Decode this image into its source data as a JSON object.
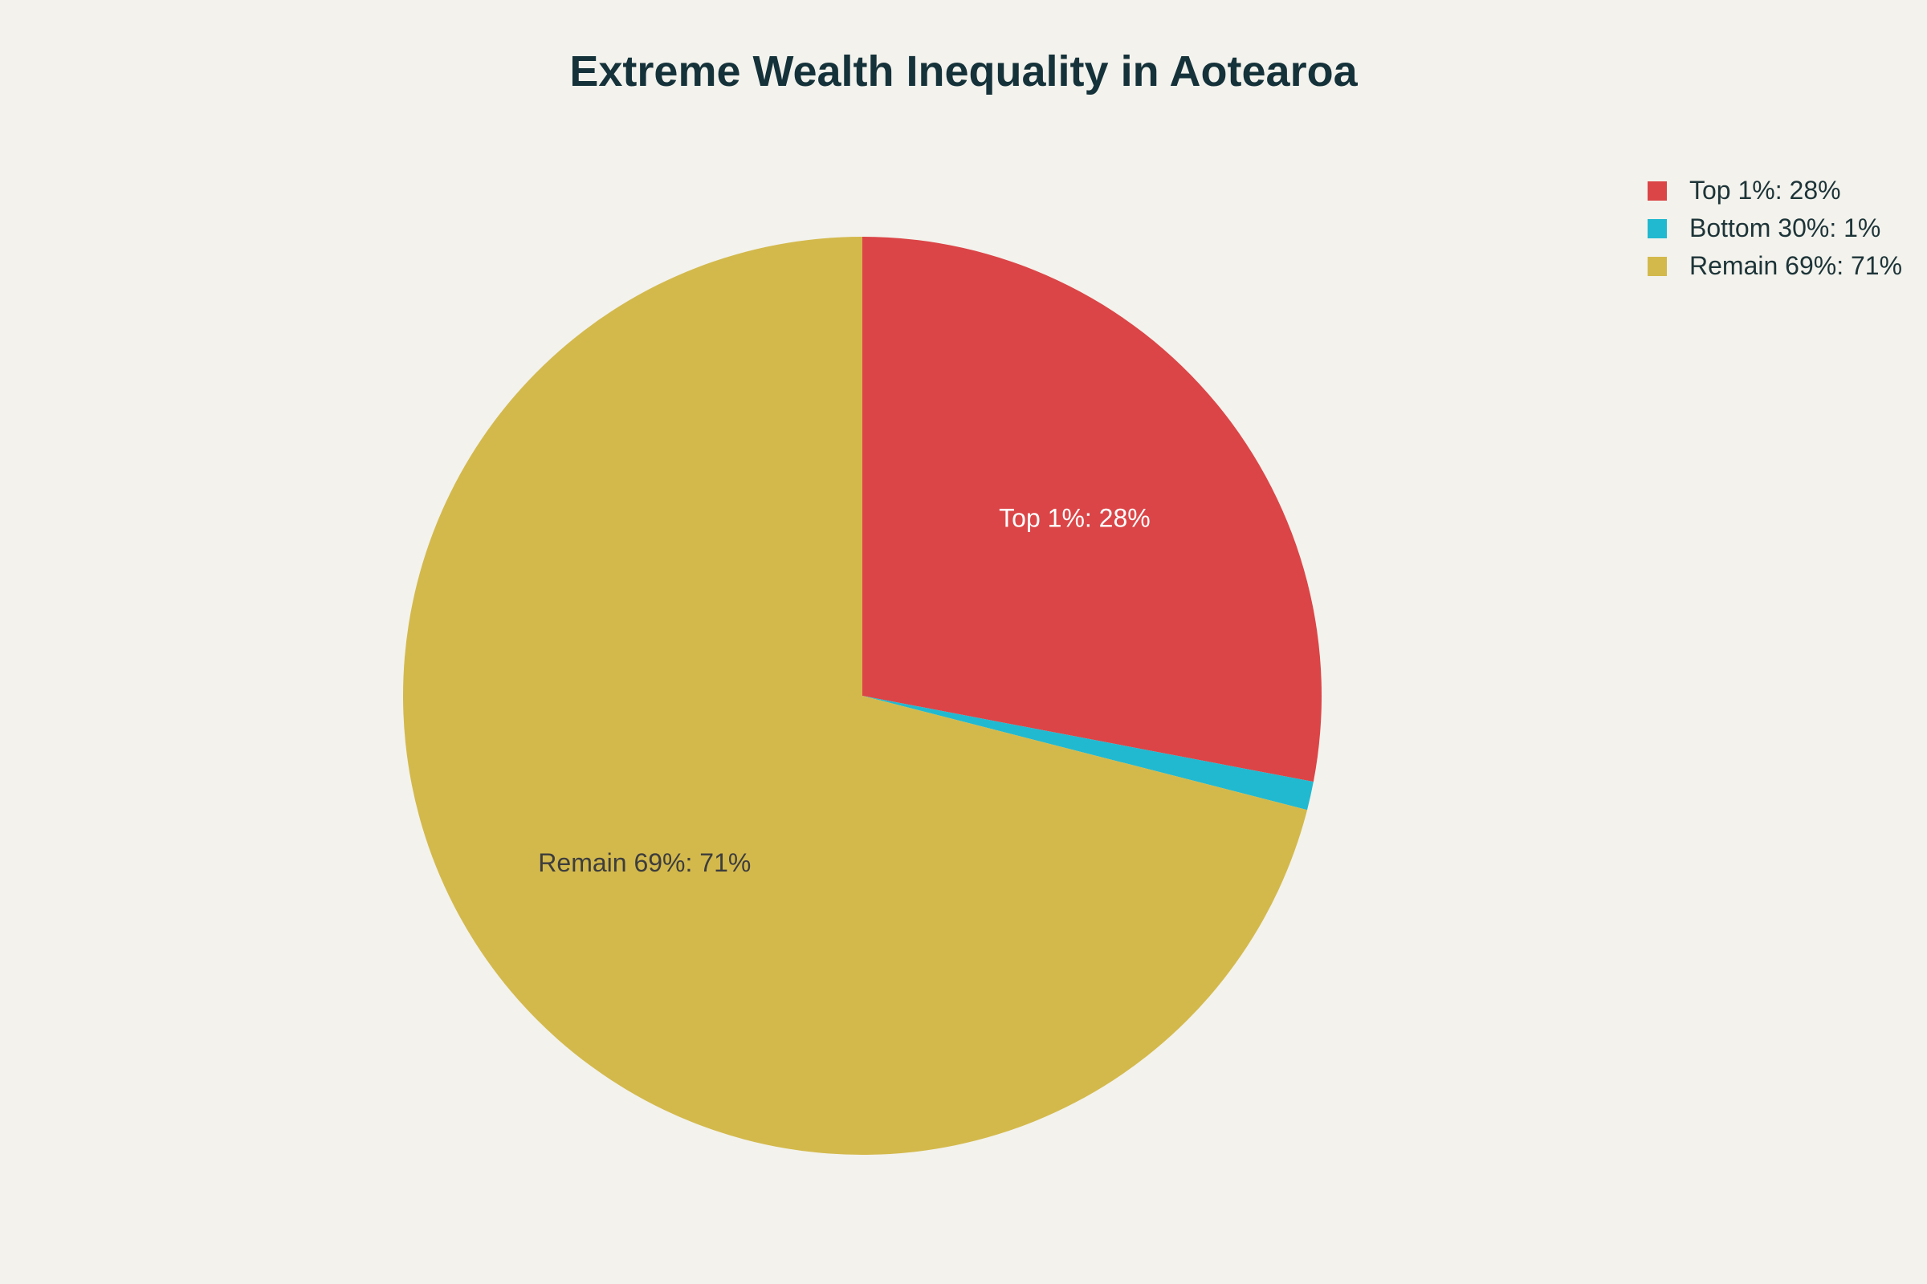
{
  "chart_data": {
    "type": "pie",
    "title": "Extreme Wealth Inequality in Aotearoa",
    "slices": [
      {
        "label": "Top 1%",
        "value": 28,
        "color": "#db4547",
        "display": "Top 1%: 28%",
        "label_color": "#ffffff",
        "show_label": true
      },
      {
        "label": "Bottom 30%",
        "value": 1,
        "color": "#21b9d0",
        "display": "Bottom 30%: 1%",
        "label_color": "#ffffff",
        "show_label": false
      },
      {
        "label": "Remain 69%",
        "value": 71,
        "color": "#d3b94c",
        "display": "Remain 69%: 71%",
        "label_color": "#3d3d3d",
        "show_label": true
      }
    ],
    "direction": "clockwise",
    "start": "top",
    "legend_position": "top-right"
  }
}
